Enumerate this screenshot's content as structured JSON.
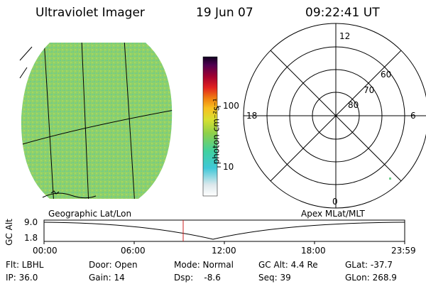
{
  "header": {
    "instrument": "Ultraviolet Imager",
    "date": "19 Jun 07",
    "time": "09:22:41 UT"
  },
  "colorbar": {
    "label": "photon cm⁻²s⁻¹",
    "ticks": [
      "100",
      "10"
    ],
    "scale": "log"
  },
  "polar": {
    "mlt_labels": {
      "top": "12",
      "left": "18",
      "right": "6",
      "bottom": "0"
    },
    "lat_labels": [
      "60",
      "70",
      "80"
    ]
  },
  "panel_labels": {
    "left": "Geographic Lat/Lon",
    "right": "Apex MLat/MLT"
  },
  "altplot": {
    "ylabel": "GC Alt",
    "ymax": "9.0",
    "ymin": "1.8",
    "x_ticks": [
      "00:00",
      "06:00",
      "12:00",
      "18:00",
      "23:59"
    ],
    "marker_time": "09:22:41"
  },
  "info": {
    "row1": {
      "flt": "Flt: LBHL",
      "door": "Door: Open",
      "mode": "Mode: Normal",
      "gcalt": "GC Alt: 4.4 Re",
      "glat": "GLat: -37.7"
    },
    "row2": {
      "ip": "IP: 36.0",
      "gain": "Gain: 14",
      "dsp": "Dsp:    -8.6",
      "seq": "Seq: 39",
      "glon": "GLon: 268.9"
    }
  },
  "colors": {
    "image_base": "#8ecf6a",
    "image_speckle": "#5fcf9a",
    "marker": "#cc2222"
  }
}
